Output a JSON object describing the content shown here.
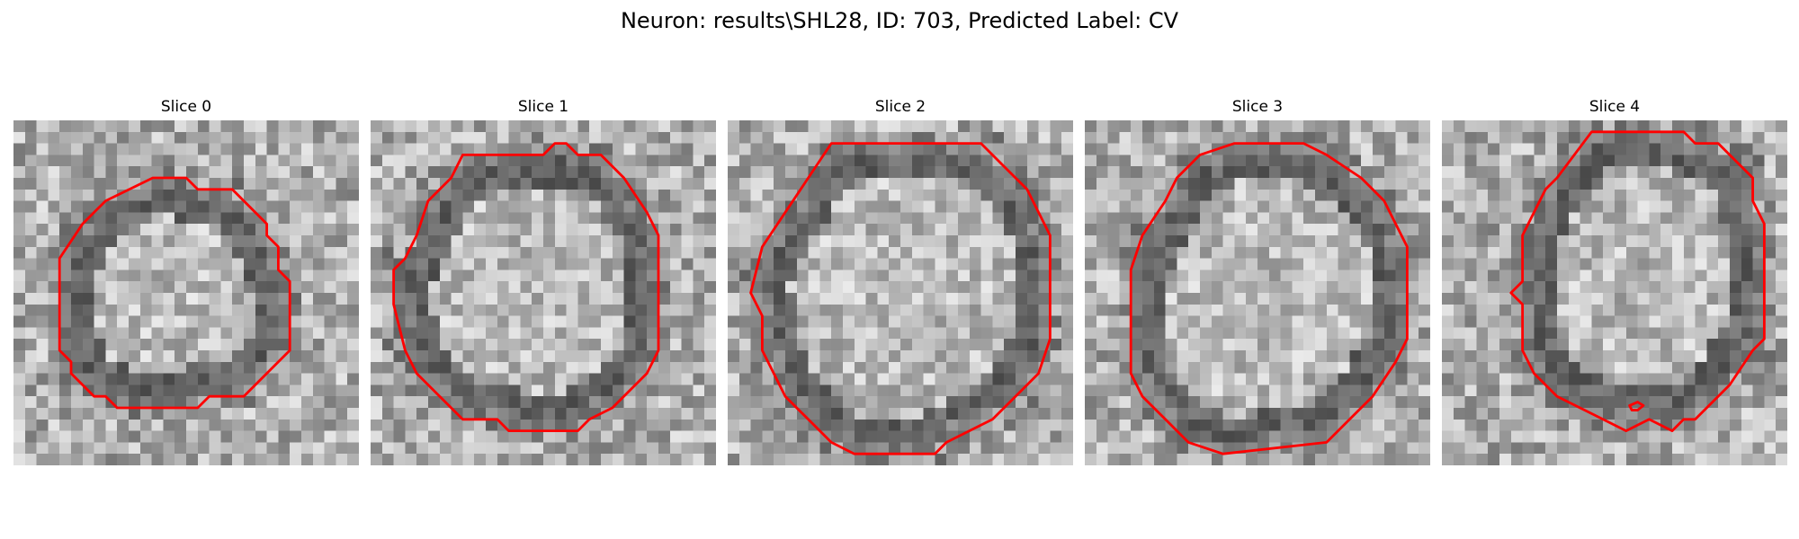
{
  "figure": {
    "title": "Neuron: results\\SHL28, ID: 703, Predicted Label: CV"
  },
  "contour_color": "#ff0000",
  "panels": [
    {
      "title": "Slice 0",
      "seed": 11,
      "contour": [
        [
          12.1,
          5.0
        ],
        [
          15.0,
          5.0
        ],
        [
          16.0,
          6.0
        ],
        [
          19.0,
          6.0
        ],
        [
          22.0,
          9.0
        ],
        [
          22.0,
          10.0
        ],
        [
          23.0,
          11.0
        ],
        [
          23.0,
          13.0
        ],
        [
          24.0,
          14.0
        ],
        [
          24.0,
          20.0
        ],
        [
          22.0,
          22.0
        ],
        [
          20.0,
          24.0
        ],
        [
          17.0,
          24.0
        ],
        [
          16.0,
          25.0
        ],
        [
          9.0,
          25.0
        ],
        [
          8.0,
          24.0
        ],
        [
          7.0,
          24.0
        ],
        [
          5.0,
          22.0
        ],
        [
          5.0,
          21.0
        ],
        [
          4.0,
          20.0
        ],
        [
          4.0,
          12.0
        ],
        [
          6.0,
          9.0
        ],
        [
          7.0,
          8.0
        ],
        [
          8.0,
          7.0
        ]
      ],
      "extra_contours": []
    },
    {
      "title": "Slice 1",
      "seed": 23,
      "contour": [
        [
          8.0,
          3.0
        ],
        [
          15.0,
          3.0
        ],
        [
          16.0,
          2.0
        ],
        [
          17.0,
          2.0
        ],
        [
          18.0,
          3.0
        ],
        [
          20.0,
          3.0
        ],
        [
          22.0,
          5.0
        ],
        [
          24.0,
          8.0
        ],
        [
          25.0,
          10.0
        ],
        [
          25.0,
          20.0
        ],
        [
          24.0,
          22.0
        ],
        [
          21.0,
          25.0
        ],
        [
          19.0,
          26.0
        ],
        [
          18.0,
          27.0
        ],
        [
          12.0,
          27.0
        ],
        [
          11.0,
          26.0
        ],
        [
          8.0,
          26.0
        ],
        [
          6.0,
          24.0
        ],
        [
          4.0,
          22.0
        ],
        [
          3.0,
          20.0
        ],
        [
          2.0,
          16.0
        ],
        [
          2.0,
          13.0
        ],
        [
          3.0,
          12.0
        ],
        [
          4.0,
          10.0
        ],
        [
          5.0,
          7.0
        ],
        [
          7.0,
          5.0
        ]
      ],
      "extra_contours": []
    },
    {
      "title": "Slice 2",
      "seed": 37,
      "contour": [
        [
          9.0,
          2.0
        ],
        [
          12.0,
          2.0
        ],
        [
          22.0,
          2.0
        ],
        [
          24.0,
          4.0
        ],
        [
          26.0,
          6.0
        ],
        [
          27.0,
          8.0
        ],
        [
          28.0,
          10.0
        ],
        [
          28.0,
          19.0
        ],
        [
          27.0,
          22.0
        ],
        [
          25.0,
          24.0
        ],
        [
          23.0,
          26.0
        ],
        [
          19.0,
          28.0
        ],
        [
          18.0,
          29.0
        ],
        [
          11.0,
          29.0
        ],
        [
          9.0,
          28.0
        ],
        [
          7.0,
          26.0
        ],
        [
          5.0,
          24.0
        ],
        [
          4.0,
          22.0
        ],
        [
          3.0,
          20.0
        ],
        [
          3.0,
          17.0
        ],
        [
          2.0,
          15.0
        ],
        [
          3.0,
          11.0
        ],
        [
          5.0,
          8.0
        ],
        [
          7.0,
          5.0
        ]
      ],
      "extra_contours": []
    },
    {
      "title": "Slice 3",
      "seed": 53,
      "contour": [
        [
          10.0,
          3.0
        ],
        [
          13.0,
          2.0
        ],
        [
          19.0,
          2.0
        ],
        [
          21.0,
          3.0
        ],
        [
          24.0,
          5.0
        ],
        [
          26.0,
          7.0
        ],
        [
          27.0,
          9.0
        ],
        [
          28.0,
          11.0
        ],
        [
          28.0,
          19.0
        ],
        [
          27.0,
          21.0
        ],
        [
          25.0,
          24.0
        ],
        [
          23.0,
          26.0
        ],
        [
          21.0,
          28.0
        ],
        [
          12.0,
          29.0
        ],
        [
          9.0,
          28.0
        ],
        [
          7.0,
          26.0
        ],
        [
          5.0,
          24.0
        ],
        [
          4.0,
          22.0
        ],
        [
          4.0,
          13.0
        ],
        [
          5.0,
          10.0
        ],
        [
          7.0,
          7.0
        ],
        [
          8.0,
          5.0
        ]
      ],
      "extra_contours": []
    },
    {
      "title": "Slice 4",
      "seed": 71,
      "contour": [
        [
          13.0,
          1.0
        ],
        [
          21.0,
          1.0
        ],
        [
          22.0,
          2.0
        ],
        [
          24.0,
          2.0
        ],
        [
          26.0,
          4.0
        ],
        [
          27.0,
          5.0
        ],
        [
          27.0,
          7.0
        ],
        [
          28.0,
          9.0
        ],
        [
          28.0,
          19.0
        ],
        [
          27.0,
          20.0
        ],
        [
          25.0,
          23.0
        ],
        [
          22.0,
          26.0
        ],
        [
          21.0,
          26.0
        ],
        [
          20.0,
          27.0
        ],
        [
          18.0,
          26.0
        ],
        [
          16.0,
          27.0
        ],
        [
          12.0,
          25.0
        ],
        [
          10.0,
          24.0
        ],
        [
          8.0,
          22.0
        ],
        [
          7.0,
          20.0
        ],
        [
          7.0,
          16.0
        ],
        [
          6.0,
          15.0
        ],
        [
          7.0,
          14.0
        ],
        [
          7.0,
          10.0
        ],
        [
          9.0,
          6.0
        ],
        [
          10.0,
          5.0
        ]
      ],
      "extra_contours": [
        [
          [
            16.3,
            24.8
          ],
          [
            17.0,
            24.5
          ],
          [
            17.5,
            24.8
          ],
          [
            17.0,
            25.2
          ],
          [
            16.5,
            25.2
          ]
        ]
      ]
    }
  ]
}
